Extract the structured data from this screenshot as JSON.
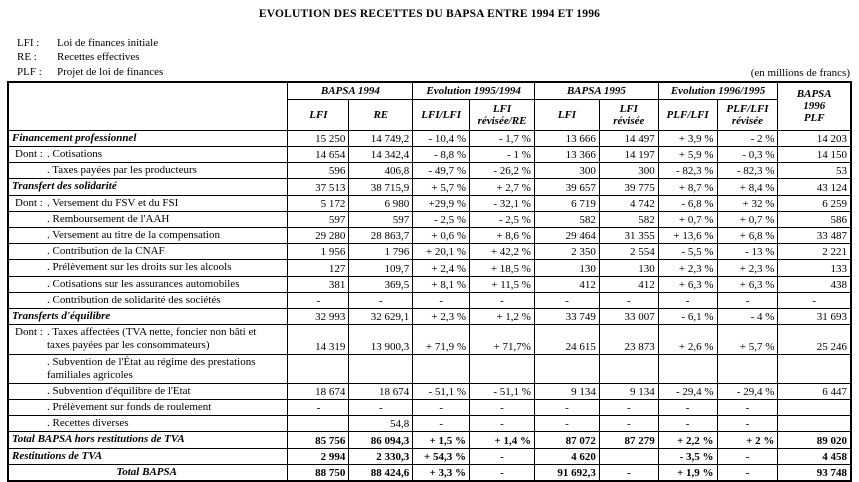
{
  "title": "EVOLUTION DES RECETTES DU BAPSA ENTRE 1994 ET 1996",
  "legend": [
    {
      "abbr": "LFI :",
      "label": "Loi de finances initiale"
    },
    {
      "abbr": "RE :",
      "label": "Recettes effectives"
    },
    {
      "abbr": "PLF :",
      "label": "Projet de loi de finances"
    }
  ],
  "unit_note": "(en millions de francs)",
  "table": {
    "header": {
      "groups": [
        "BAPSA 1994",
        "Evolution 1995/1994",
        "BAPSA 1995",
        "Evolution 1996/1995"
      ],
      "last_col": "BAPSA\n1996\nPLF",
      "sub": [
        "LFI",
        "RE",
        "LFI/LFI",
        "LFI\nrévisée/RE",
        "LFI",
        "LFI\nrévisée",
        "PLF/LFI",
        "PLF/LFI\nrévisée"
      ]
    },
    "rows": [
      {
        "style": "section",
        "prefix": "",
        "label": "Financement professionnel",
        "values": [
          "15 250",
          "14 749,2",
          "- 10,4 %",
          "- 1,7 %",
          "13 666",
          "14 497",
          "+ 3,9 %",
          "- 2 %",
          "14 203"
        ]
      },
      {
        "style": "sub",
        "prefix": "Dont :",
        "label": ". Cotisations",
        "values": [
          "14 654",
          "14 342,4",
          "- 8,8 %",
          "- 1 %",
          "13 366",
          "14 197",
          "+ 5,9 %",
          "- 0,3 %",
          "14 150"
        ]
      },
      {
        "style": "sub",
        "prefix": "",
        "label": ". Taxes payées par les producteurs",
        "values": [
          "596",
          "406,8",
          "- 49,7 %",
          "- 26,2 %",
          "300",
          "300",
          "- 82,3 %",
          "- 82,3 %",
          "53"
        ]
      },
      {
        "style": "section",
        "prefix": "",
        "label": "Transfert des solidarité",
        "values": [
          "37 513",
          "38 715,9",
          "+ 5,7 %",
          "+ 2,7 %",
          "39 657",
          "39 775",
          "+ 8,7 %",
          "+ 8,4 %",
          "43 124"
        ]
      },
      {
        "style": "sub",
        "prefix": "Dont :",
        "label": ". Versement du FSV et du FSI",
        "values": [
          "5 172",
          "6 980",
          "+29,9 %",
          "- 32,1 %",
          "6 719",
          "4 742",
          "- 6,8 %",
          "+ 32 %",
          "6 259"
        ]
      },
      {
        "style": "sub",
        "prefix": "",
        "label": ". Remboursement de l'AAH",
        "values": [
          "597",
          "597",
          "- 2,5 %",
          "- 2,5 %",
          "582",
          "582",
          "+ 0,7 %",
          "+ 0,7 %",
          "586"
        ]
      },
      {
        "style": "sub",
        "prefix": "",
        "label": ". Versement au titre de la compensation",
        "values": [
          "29 280",
          "28 863,7",
          "+ 0,6 %",
          "+ 8,6 %",
          "29 464",
          "31 355",
          "+ 13,6 %",
          "+ 6,8 %",
          "33 487"
        ]
      },
      {
        "style": "sub",
        "prefix": "",
        "label": ". Contribution de la CNAF",
        "values": [
          "1 956",
          "1 796",
          "+ 20,1 %",
          "+ 42,2 %",
          "2 350",
          "2 554",
          "- 5,5 %",
          "- 13 %",
          "2 221"
        ]
      },
      {
        "style": "sub",
        "prefix": "",
        "label": ". Prélèvement sur les droits sur les alcools",
        "values": [
          "127",
          "109,7",
          "+ 2,4 %",
          "+ 18,5 %",
          "130",
          "130",
          "+ 2,3 %",
          "+ 2,3 %",
          "133"
        ]
      },
      {
        "style": "sub",
        "prefix": "",
        "label": ". Cotisations sur les assurances automobiles",
        "values": [
          "381",
          "369,5",
          "+ 8,1 %",
          "+ 11,5 %",
          "412",
          "412",
          "+ 6,3 %",
          "+ 6,3 %",
          "438"
        ]
      },
      {
        "style": "sub",
        "prefix": "",
        "label": ". Contribution de solidarité des sociétés",
        "values": [
          "-",
          "-",
          "-",
          "-",
          "-",
          "-",
          "-",
          "-",
          "-"
        ]
      },
      {
        "style": "section",
        "prefix": "",
        "label": "Transferts d'équilibre",
        "values": [
          "32 993",
          "32 629,1",
          "+ 2,3 %",
          "+ 1,2 %",
          "33 749",
          "33 007",
          "- 6,1 %",
          "- 4 %",
          "31 693"
        ]
      },
      {
        "style": "sub",
        "prefix": "Dont :",
        "label": ". Taxes affectées (TVA nette, foncier non bâti et\ntaxes payées par les consommateurs)",
        "values": [
          "14 319",
          "13 900,3",
          "+ 71,9 %",
          "+ 71,7%",
          "24 615",
          "23 873",
          "+ 2,6 %",
          "+ 5,7 %",
          "25 246"
        ]
      },
      {
        "style": "sub",
        "prefix": "",
        "label": ". Subvention de l'État au régime des prestations\nfamiliales agricoles",
        "values": [
          "",
          "",
          "",
          "",
          "",
          "",
          "",
          "",
          ""
        ]
      },
      {
        "style": "sub",
        "prefix": "",
        "label": ". Subvention d'équilibre de l'Etat",
        "values": [
          "18 674",
          "18 674",
          "- 51,1 %",
          "- 51,1 %",
          "9 134",
          "9 134",
          "- 29,4 %",
          "- 29,4 %",
          "6 447"
        ]
      },
      {
        "style": "sub",
        "prefix": "",
        "label": ". Prélèvement sur fonds de roulement",
        "values": [
          "-",
          "-",
          "-",
          "-",
          "-",
          "-",
          "-",
          "-",
          ""
        ]
      },
      {
        "style": "sub",
        "prefix": "",
        "label": ". Recettes diverses",
        "values": [
          "",
          "54,8",
          "-",
          "-",
          "-",
          "-",
          "-",
          "-",
          ""
        ]
      },
      {
        "style": "total",
        "prefix": "",
        "label": "Total BAPSA hors restitutions de TVA",
        "values": [
          "85 756",
          "86 094,3",
          "+ 1,5 %",
          "+ 1,4 %",
          "87 072",
          "87 279",
          "+ 2,2 %",
          "+ 2 %",
          "89 020"
        ]
      },
      {
        "style": "total",
        "prefix": "",
        "label": "Restitutions de TVA",
        "values": [
          "2 994",
          "2 330,3",
          "+ 54,3 %",
          "-",
          "4 620",
          "",
          "- 3,5 %",
          "-",
          "4 458"
        ]
      },
      {
        "style": "total-center",
        "prefix": "",
        "label": "Total BAPSA",
        "values": [
          "88 750",
          "88 424,6",
          "+ 3,3 %",
          "-",
          "91 692,3",
          "-",
          "+ 1,9 %",
          "-",
          "93 748"
        ]
      }
    ]
  }
}
